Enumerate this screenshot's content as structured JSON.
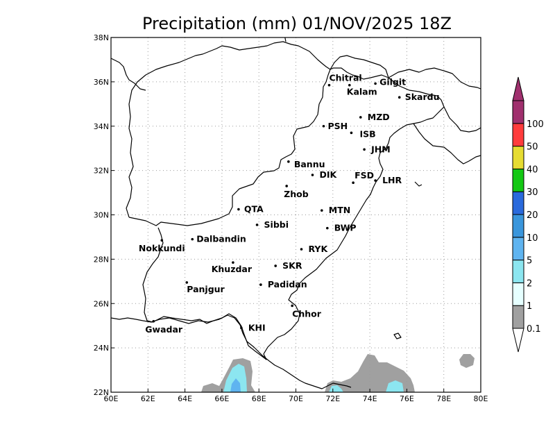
{
  "title": "Precipitation (mm) 01/NOV/2025 18Z",
  "map": {
    "lon_range": [
      60,
      80
    ],
    "lat_range": [
      22,
      38
    ],
    "x_ticks": [
      {
        "value": 60,
        "label": "60E"
      },
      {
        "value": 62,
        "label": "62E"
      },
      {
        "value": 64,
        "label": "64E"
      },
      {
        "value": 66,
        "label": "66E"
      },
      {
        "value": 68,
        "label": "68E"
      },
      {
        "value": 70,
        "label": "70E"
      },
      {
        "value": 72,
        "label": "72E"
      },
      {
        "value": 74,
        "label": "74E"
      },
      {
        "value": 76,
        "label": "76E"
      },
      {
        "value": 78,
        "label": "78E"
      },
      {
        "value": 80,
        "label": "80E"
      }
    ],
    "y_ticks": [
      {
        "value": 22,
        "label": "22N"
      },
      {
        "value": 24,
        "label": "24N"
      },
      {
        "value": 26,
        "label": "26N"
      },
      {
        "value": 28,
        "label": "28N"
      },
      {
        "value": 30,
        "label": "30N"
      },
      {
        "value": 32,
        "label": "32N"
      },
      {
        "value": 34,
        "label": "34N"
      },
      {
        "value": 36,
        "label": "36N"
      },
      {
        "value": 38,
        "label": "38N"
      }
    ],
    "grid": true,
    "cities": [
      {
        "name": "Chitral",
        "lon": 71.8,
        "lat": 35.85
      },
      {
        "name": "Gilgit",
        "lon": 74.3,
        "lat": 35.92
      },
      {
        "name": "Kalam",
        "lon": 72.9,
        "lat": 35.85
      },
      {
        "name": "Skardu",
        "lon": 75.6,
        "lat": 35.3
      },
      {
        "name": "MZD",
        "lon": 73.5,
        "lat": 34.4
      },
      {
        "name": "PSH",
        "lon": 71.5,
        "lat": 34.0
      },
      {
        "name": "ISB",
        "lon": 73.0,
        "lat": 33.7
      },
      {
        "name": "JHM",
        "lon": 73.7,
        "lat": 32.95
      },
      {
        "name": "Bannu",
        "lon": 69.6,
        "lat": 32.4
      },
      {
        "name": "DIK",
        "lon": 70.9,
        "lat": 31.8
      },
      {
        "name": "FSD",
        "lon": 73.1,
        "lat": 31.45
      },
      {
        "name": "LHR",
        "lon": 74.3,
        "lat": 31.55
      },
      {
        "name": "Zhob",
        "lon": 69.5,
        "lat": 31.3
      },
      {
        "name": "QTA",
        "lon": 66.9,
        "lat": 30.25
      },
      {
        "name": "MTN",
        "lon": 71.4,
        "lat": 30.2
      },
      {
        "name": "Sibbi",
        "lon": 67.9,
        "lat": 29.55
      },
      {
        "name": "BWP",
        "lon": 71.7,
        "lat": 29.4
      },
      {
        "name": "Nokkundi",
        "lon": 62.75,
        "lat": 28.85
      },
      {
        "name": "Dalbandin",
        "lon": 64.4,
        "lat": 28.9
      },
      {
        "name": "RYK",
        "lon": 70.3,
        "lat": 28.45
      },
      {
        "name": "Khuzdar",
        "lon": 66.6,
        "lat": 27.85
      },
      {
        "name": "SKR",
        "lon": 68.9,
        "lat": 27.7
      },
      {
        "name": "Panjgur",
        "lon": 64.1,
        "lat": 26.95
      },
      {
        "name": "Padidan",
        "lon": 68.1,
        "lat": 26.85
      },
      {
        "name": "Chhor",
        "lon": 69.8,
        "lat": 25.9
      },
      {
        "name": "Gwadar",
        "lon": 62.3,
        "lat": 25.2
      },
      {
        "name": "KHI",
        "lon": 67.05,
        "lat": 24.9
      }
    ]
  },
  "colorbar": {
    "levels": [
      "0.1",
      "1",
      "2",
      "5",
      "10",
      "20",
      "30",
      "40",
      "50",
      "100"
    ],
    "colors": [
      "#a0a0a0",
      "#e6ffff",
      "#8ce6f0",
      "#5fb4f0",
      "#3a96dc",
      "#2a6adc",
      "#14c814",
      "#e6dc32",
      "#ff3c3c",
      "#a0306e"
    ],
    "lower_color": "#ffffff",
    "upper_color": "#a0306e"
  },
  "colors": {
    "precip_gray": "#a0a0a0",
    "precip_light_cyan": "#e6ffff",
    "precip_cyan": "#8ce6f0",
    "precip_blue": "#5fb4f0"
  }
}
